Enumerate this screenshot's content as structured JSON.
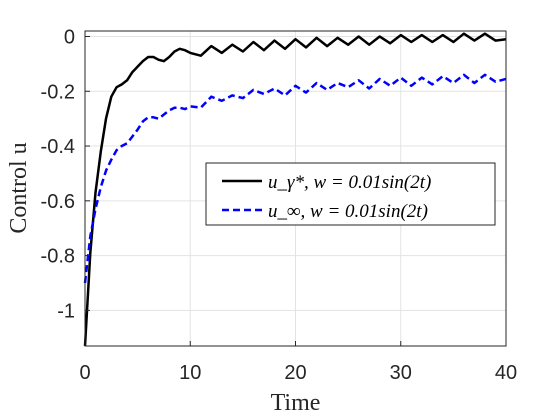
{
  "chart_data": {
    "type": "line",
    "xlabel": "Time",
    "ylabel": "Control u",
    "xlim": [
      0,
      40
    ],
    "ylim": [
      -1.13,
      0.02
    ],
    "grid": true,
    "legend_position": "center-right",
    "x_ticks": [
      0,
      10,
      20,
      30,
      40
    ],
    "x_tick_labels": [
      "0",
      "10",
      "20",
      "30",
      "40"
    ],
    "y_ticks": [
      0,
      -0.2,
      -0.4,
      -0.6,
      -0.8,
      -1
    ],
    "y_tick_labels": [
      "0",
      "-0.2",
      "-0.4",
      "-0.6",
      "-0.8",
      "-1"
    ],
    "series": [
      {
        "name": "u_γ*, w = 0.01sin(2t)",
        "color": "#000000",
        "dash": "solid",
        "x": [
          0,
          0.5,
          1,
          1.5,
          2,
          2.5,
          3,
          3.5,
          4,
          4.5,
          5,
          5.5,
          6,
          6.5,
          7,
          7.5,
          8,
          8.5,
          9,
          9.5,
          10,
          11,
          12,
          13,
          14,
          15,
          16,
          17,
          18,
          19,
          20,
          21,
          22,
          23,
          24,
          25,
          26,
          27,
          28,
          29,
          30,
          31,
          32,
          33,
          34,
          35,
          36,
          37,
          38,
          39,
          40
        ],
        "values": [
          -1.13,
          -0.79,
          -0.57,
          -0.42,
          -0.3,
          -0.22,
          -0.185,
          -0.175,
          -0.16,
          -0.13,
          -0.11,
          -0.09,
          -0.075,
          -0.075,
          -0.085,
          -0.09,
          -0.075,
          -0.055,
          -0.045,
          -0.05,
          -0.06,
          -0.07,
          -0.035,
          -0.06,
          -0.03,
          -0.055,
          -0.02,
          -0.05,
          -0.015,
          -0.045,
          -0.01,
          -0.04,
          -0.005,
          -0.035,
          -0.005,
          -0.03,
          0.0,
          -0.03,
          0.0,
          -0.025,
          0.005,
          -0.02,
          0.005,
          -0.02,
          0.005,
          -0.02,
          0.01,
          -0.015,
          0.01,
          -0.015,
          -0.01
        ]
      },
      {
        "name": "u_∞, w = 0.01sin(2t)",
        "color": "#0000ff",
        "dash": "dashed",
        "x": [
          0,
          0.5,
          1,
          1.5,
          2,
          2.5,
          3,
          3.5,
          4,
          4.5,
          5,
          5.5,
          6,
          6.5,
          7,
          7.5,
          8,
          8.5,
          9,
          9.5,
          10,
          11,
          12,
          13,
          14,
          15,
          16,
          17,
          18,
          19,
          20,
          21,
          22,
          23,
          24,
          25,
          26,
          27,
          28,
          29,
          30,
          31,
          32,
          33,
          34,
          35,
          36,
          37,
          38,
          39,
          40
        ],
        "values": [
          -0.9,
          -0.73,
          -0.63,
          -0.55,
          -0.49,
          -0.45,
          -0.415,
          -0.4,
          -0.39,
          -0.365,
          -0.34,
          -0.31,
          -0.295,
          -0.295,
          -0.3,
          -0.285,
          -0.27,
          -0.26,
          -0.26,
          -0.265,
          -0.255,
          -0.26,
          -0.22,
          -0.235,
          -0.215,
          -0.225,
          -0.195,
          -0.21,
          -0.19,
          -0.215,
          -0.18,
          -0.205,
          -0.17,
          -0.195,
          -0.17,
          -0.185,
          -0.16,
          -0.19,
          -0.155,
          -0.18,
          -0.15,
          -0.18,
          -0.15,
          -0.175,
          -0.145,
          -0.17,
          -0.14,
          -0.17,
          -0.14,
          -0.165,
          -0.155
        ]
      }
    ]
  }
}
